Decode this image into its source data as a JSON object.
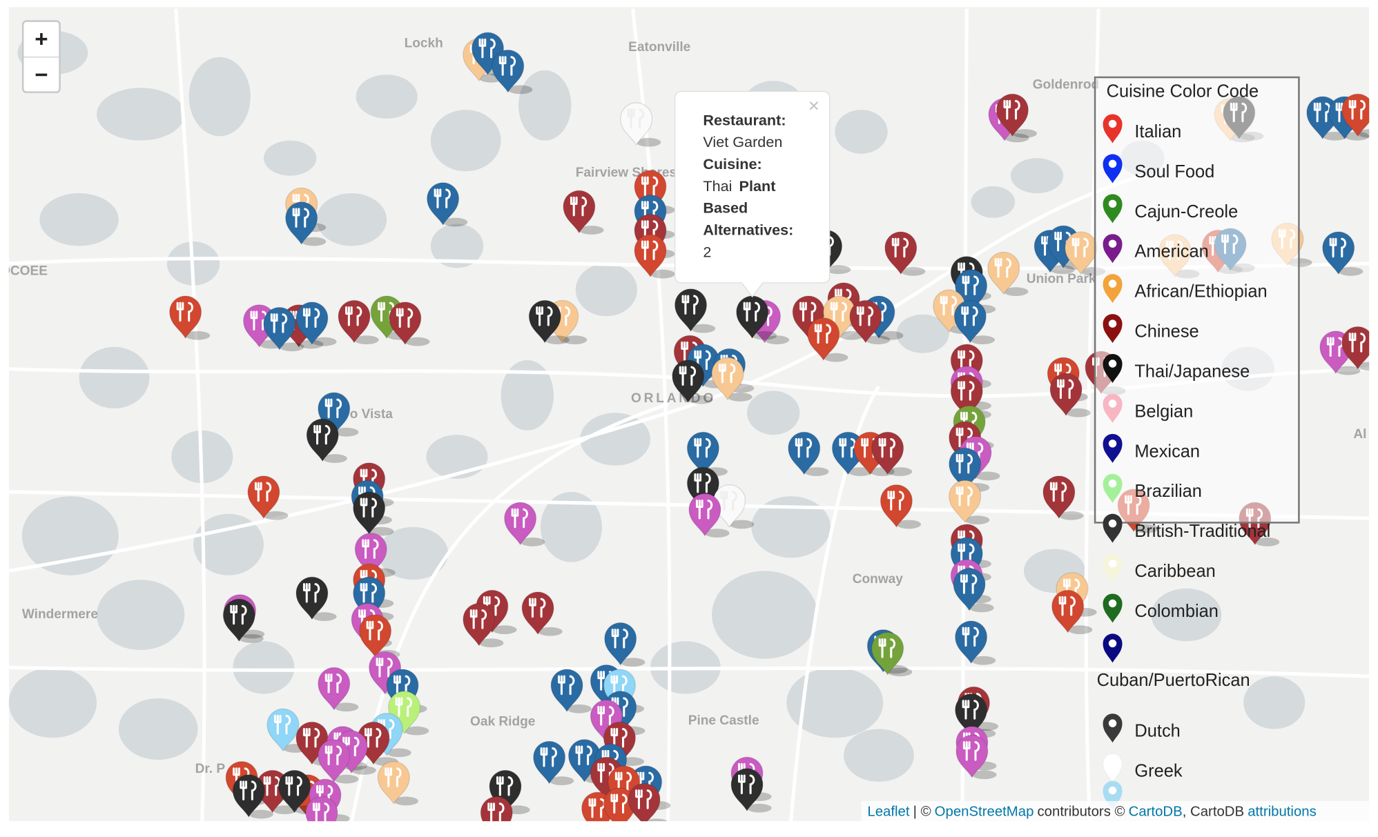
{
  "zoom": {
    "in": "+",
    "out": "−"
  },
  "place_labels": [
    "Lockh",
    "Eatonville",
    "Goldenrod",
    "Fairview Shores",
    "OCOEE",
    "Union Park",
    "o Vista",
    "ORLANDO",
    "Conway",
    "Windermere",
    "Oak Ridge",
    "Pine Castle",
    "Dr. P",
    "Al"
  ],
  "popup": {
    "close": "×",
    "restaurant_label": "Restaurant:",
    "restaurant": "Viet Garden",
    "cuisine_label": "Cuisine:",
    "cuisine": "Thai",
    "plant_based_label_lines": [
      "Plant",
      "Based",
      "Alternatives:"
    ],
    "plant_based": 2
  },
  "legend": {
    "title": "Cuisine Color Code",
    "items": [
      {
        "name": "Italian",
        "color": "#e8332b"
      },
      {
        "name": "Soul Food",
        "color": "#1030f0"
      },
      {
        "name": "Cajun-Creole",
        "color": "#2f8a1f"
      },
      {
        "name": "American",
        "color": "#7a1d8c"
      },
      {
        "name": "African/Ethiopian",
        "color": "#f2a33a"
      },
      {
        "name": "Chinese",
        "color": "#8c1010"
      },
      {
        "name": "Thai/Japanese",
        "color": "#111111"
      },
      {
        "name": "Belgian",
        "color": "#f7b6c2"
      },
      {
        "name": "Mexican",
        "color": "#101090"
      },
      {
        "name": "Brazilian",
        "color": "#a4f09a"
      },
      {
        "name": "British-Traditional",
        "color": "#333333"
      },
      {
        "name": "Caribbean",
        "color": "#f5f5dc"
      },
      {
        "name": "Colombian",
        "color": "#1f6b1f"
      },
      {
        "name": "Cuban/PuertoRican",
        "color": "#0a0a80"
      },
      {
        "name": "Dutch",
        "color": "#3a3a3a"
      },
      {
        "name": "Greek",
        "color": "#ffffff"
      }
    ]
  },
  "attribution": {
    "leaflet": "Leaflet",
    "sep": "| ©",
    "osm": "OpenStreetMap",
    "contributors": "contributors ©",
    "cartodb": "CartoDB",
    "cartodb2": ", CartoDB",
    "attributions": "attributions"
  }
}
